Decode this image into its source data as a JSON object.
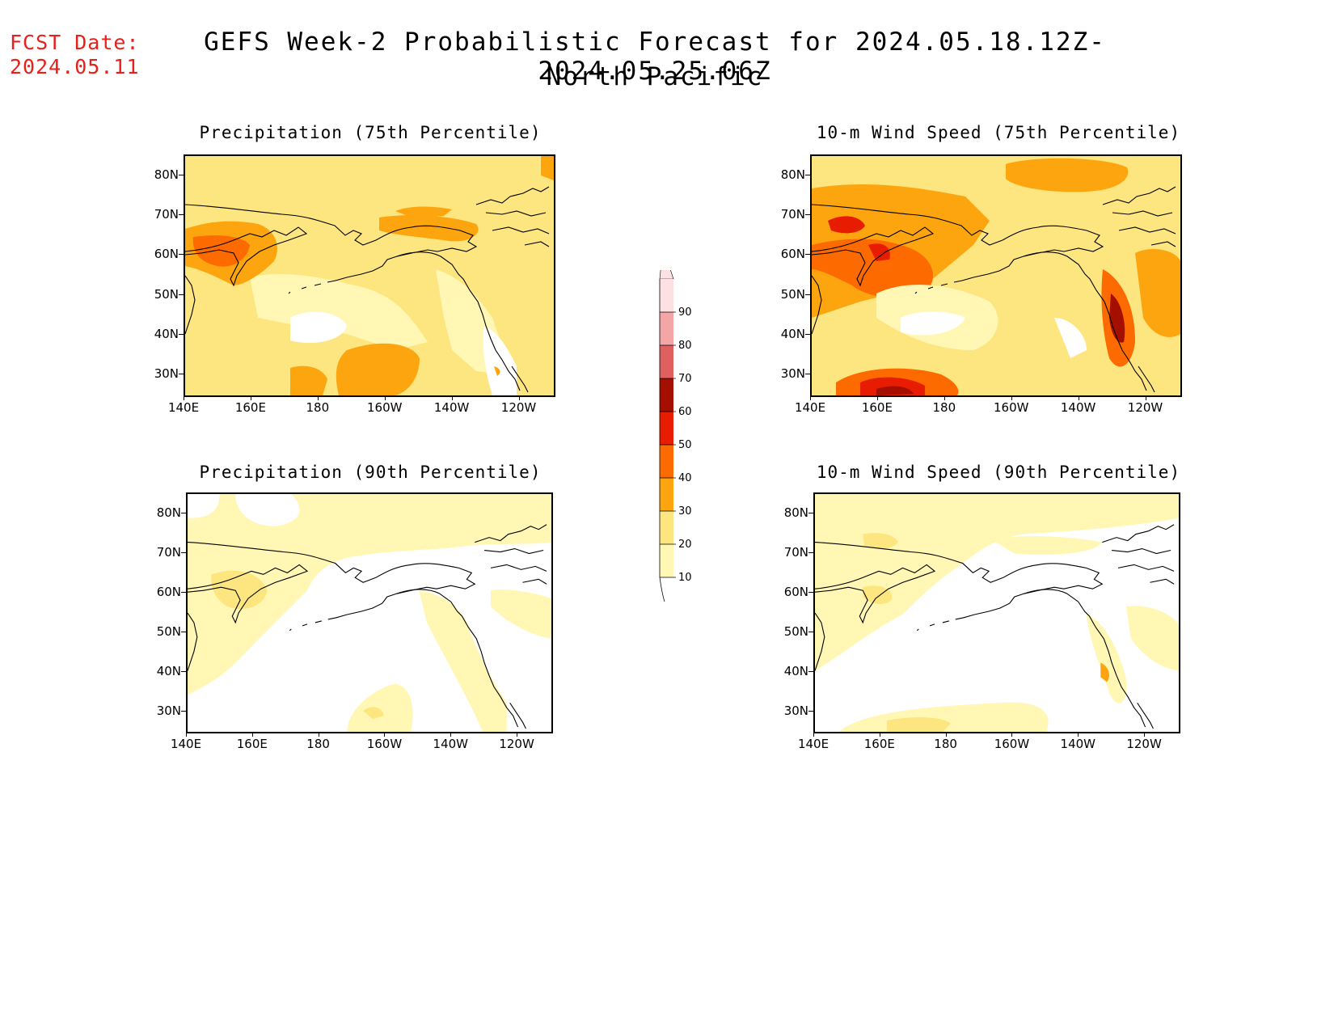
{
  "header": {
    "fcst_line1": "FCST Date:",
    "fcst_line2": "2024.05.11",
    "title_line1": "GEFS Week-2 Probabilistic Forecast for 2024.05.18.12Z-2024.05.25.06Z",
    "title_line2": "North Pacific"
  },
  "panels": [
    {
      "id": "precip75",
      "title": "Precipitation (75th Percentile)"
    },
    {
      "id": "wind75",
      "title": "10-m Wind Speed (75th Percentile)"
    },
    {
      "id": "precip90",
      "title": "Precipitation (90th Percentile)"
    },
    {
      "id": "wind90",
      "title": "10-m Wind Speed (90th Percentile)"
    }
  ],
  "axes": {
    "lat_labels": [
      "80N",
      "70N",
      "60N",
      "50N",
      "40N",
      "30N"
    ],
    "lon_labels": [
      "140E",
      "160E",
      "180",
      "160W",
      "140W",
      "120W"
    ]
  },
  "colorbar": {
    "levels": [
      "10",
      "20",
      "30",
      "40",
      "50",
      "60",
      "70",
      "80",
      "90"
    ],
    "colors": [
      "#fff7b3",
      "#fde680",
      "#fda50f",
      "#fd6a00",
      "#e81c00",
      "#a50f00",
      "#e06060",
      "#f4a5a5",
      "#fde0e0"
    ]
  }
}
